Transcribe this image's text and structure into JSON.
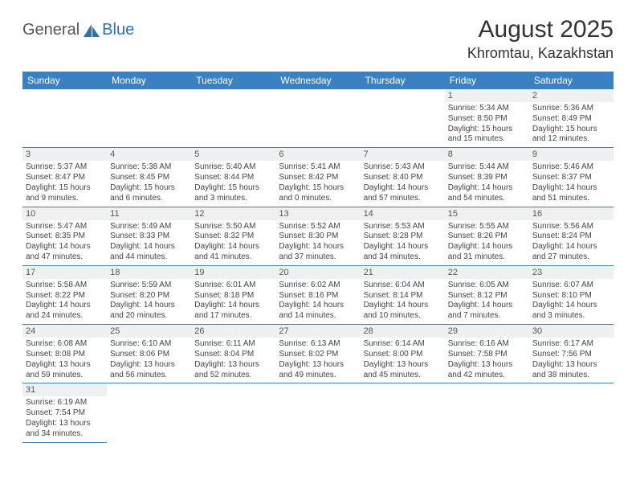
{
  "logo": {
    "part1": "General",
    "part2": "Blue"
  },
  "title": "August 2025",
  "location": "Khromtau, Kazakhstan",
  "header_bg": "#3a81c4",
  "dow": [
    "Sunday",
    "Monday",
    "Tuesday",
    "Wednesday",
    "Thursday",
    "Friday",
    "Saturday"
  ],
  "weeks": [
    [
      null,
      null,
      null,
      null,
      null,
      {
        "n": "1",
        "sr": "5:34 AM",
        "ss": "8:50 PM",
        "dl": "15 hours and 15 minutes."
      },
      {
        "n": "2",
        "sr": "5:36 AM",
        "ss": "8:49 PM",
        "dl": "15 hours and 12 minutes."
      }
    ],
    [
      {
        "n": "3",
        "sr": "5:37 AM",
        "ss": "8:47 PM",
        "dl": "15 hours and 9 minutes."
      },
      {
        "n": "4",
        "sr": "5:38 AM",
        "ss": "8:45 PM",
        "dl": "15 hours and 6 minutes."
      },
      {
        "n": "5",
        "sr": "5:40 AM",
        "ss": "8:44 PM",
        "dl": "15 hours and 3 minutes."
      },
      {
        "n": "6",
        "sr": "5:41 AM",
        "ss": "8:42 PM",
        "dl": "15 hours and 0 minutes."
      },
      {
        "n": "7",
        "sr": "5:43 AM",
        "ss": "8:40 PM",
        "dl": "14 hours and 57 minutes."
      },
      {
        "n": "8",
        "sr": "5:44 AM",
        "ss": "8:39 PM",
        "dl": "14 hours and 54 minutes."
      },
      {
        "n": "9",
        "sr": "5:46 AM",
        "ss": "8:37 PM",
        "dl": "14 hours and 51 minutes."
      }
    ],
    [
      {
        "n": "10",
        "sr": "5:47 AM",
        "ss": "8:35 PM",
        "dl": "14 hours and 47 minutes."
      },
      {
        "n": "11",
        "sr": "5:49 AM",
        "ss": "8:33 PM",
        "dl": "14 hours and 44 minutes."
      },
      {
        "n": "12",
        "sr": "5:50 AM",
        "ss": "8:32 PM",
        "dl": "14 hours and 41 minutes."
      },
      {
        "n": "13",
        "sr": "5:52 AM",
        "ss": "8:30 PM",
        "dl": "14 hours and 37 minutes."
      },
      {
        "n": "14",
        "sr": "5:53 AM",
        "ss": "8:28 PM",
        "dl": "14 hours and 34 minutes."
      },
      {
        "n": "15",
        "sr": "5:55 AM",
        "ss": "8:26 PM",
        "dl": "14 hours and 31 minutes."
      },
      {
        "n": "16",
        "sr": "5:56 AM",
        "ss": "8:24 PM",
        "dl": "14 hours and 27 minutes."
      }
    ],
    [
      {
        "n": "17",
        "sr": "5:58 AM",
        "ss": "8:22 PM",
        "dl": "14 hours and 24 minutes."
      },
      {
        "n": "18",
        "sr": "5:59 AM",
        "ss": "8:20 PM",
        "dl": "14 hours and 20 minutes."
      },
      {
        "n": "19",
        "sr": "6:01 AM",
        "ss": "8:18 PM",
        "dl": "14 hours and 17 minutes."
      },
      {
        "n": "20",
        "sr": "6:02 AM",
        "ss": "8:16 PM",
        "dl": "14 hours and 14 minutes."
      },
      {
        "n": "21",
        "sr": "6:04 AM",
        "ss": "8:14 PM",
        "dl": "14 hours and 10 minutes."
      },
      {
        "n": "22",
        "sr": "6:05 AM",
        "ss": "8:12 PM",
        "dl": "14 hours and 7 minutes."
      },
      {
        "n": "23",
        "sr": "6:07 AM",
        "ss": "8:10 PM",
        "dl": "14 hours and 3 minutes."
      }
    ],
    [
      {
        "n": "24",
        "sr": "6:08 AM",
        "ss": "8:08 PM",
        "dl": "13 hours and 59 minutes."
      },
      {
        "n": "25",
        "sr": "6:10 AM",
        "ss": "8:06 PM",
        "dl": "13 hours and 56 minutes."
      },
      {
        "n": "26",
        "sr": "6:11 AM",
        "ss": "8:04 PM",
        "dl": "13 hours and 52 minutes."
      },
      {
        "n": "27",
        "sr": "6:13 AM",
        "ss": "8:02 PM",
        "dl": "13 hours and 49 minutes."
      },
      {
        "n": "28",
        "sr": "6:14 AM",
        "ss": "8:00 PM",
        "dl": "13 hours and 45 minutes."
      },
      {
        "n": "29",
        "sr": "6:16 AM",
        "ss": "7:58 PM",
        "dl": "13 hours and 42 minutes."
      },
      {
        "n": "30",
        "sr": "6:17 AM",
        "ss": "7:56 PM",
        "dl": "13 hours and 38 minutes."
      }
    ],
    [
      {
        "n": "31",
        "sr": "6:19 AM",
        "ss": "7:54 PM",
        "dl": "13 hours and 34 minutes."
      },
      null,
      null,
      null,
      null,
      null,
      null
    ]
  ],
  "labels": {
    "sunrise": "Sunrise:",
    "sunset": "Sunset:",
    "daylight": "Daylight:"
  }
}
